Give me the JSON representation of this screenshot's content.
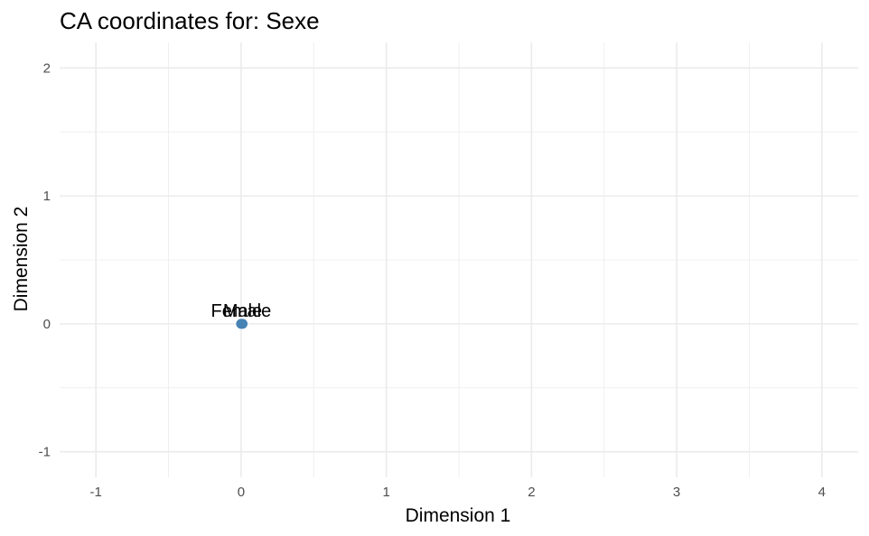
{
  "chart_data": {
    "type": "scatter",
    "title": "CA coordinates for: Sexe",
    "xlabel": "Dimension 1",
    "ylabel": "Dimension 2",
    "xlim": [
      -1.25,
      4.25
    ],
    "ylim": [
      -1.2,
      2.2
    ],
    "x_ticks": [
      -1,
      0,
      1,
      2,
      3,
      4
    ],
    "y_ticks": [
      -1,
      0,
      1,
      2
    ],
    "x_tick_labels": [
      "-1",
      "0",
      "1",
      "2",
      "3",
      "4"
    ],
    "y_tick_labels": [
      "-1",
      "0",
      "1",
      "2"
    ],
    "grid": true,
    "legend": "none",
    "point_color": "#4682b4",
    "points": [
      {
        "label": "Female",
        "x": 0.0,
        "y": 0.0
      },
      {
        "label": "Male",
        "x": 0.01,
        "y": 0.0
      }
    ]
  }
}
